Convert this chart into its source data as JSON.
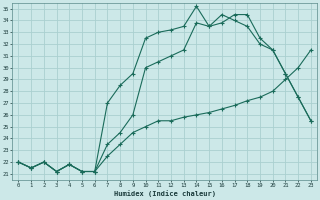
{
  "xlabel": "Humidex (Indice chaleur)",
  "bg_color": "#cce8e8",
  "line_color": "#1a6b5a",
  "grid_color": "#aad0d0",
  "xlim": [
    -0.5,
    23.5
  ],
  "ylim": [
    20.5,
    35.5
  ],
  "xticks": [
    0,
    1,
    2,
    3,
    4,
    5,
    6,
    7,
    8,
    9,
    10,
    11,
    12,
    13,
    14,
    15,
    16,
    17,
    18,
    19,
    20,
    21,
    22,
    23
  ],
  "yticks": [
    21,
    22,
    23,
    24,
    25,
    26,
    27,
    28,
    29,
    30,
    31,
    32,
    33,
    34,
    35
  ],
  "line1_x": [
    0,
    1,
    2,
    3,
    4,
    5,
    6,
    7,
    8,
    9,
    10,
    11,
    12,
    13,
    14,
    15,
    16,
    17,
    18,
    19,
    20,
    21,
    22,
    23
  ],
  "line1_y": [
    22.0,
    21.5,
    22.0,
    21.2,
    21.8,
    21.2,
    21.2,
    22.5,
    23.5,
    24.5,
    25.0,
    25.5,
    25.5,
    25.8,
    26.0,
    26.2,
    26.5,
    26.8,
    27.2,
    27.5,
    28.0,
    29.0,
    30.0,
    31.5
  ],
  "line2_x": [
    0,
    1,
    2,
    3,
    4,
    5,
    6,
    7,
    8,
    9,
    10,
    11,
    12,
    13,
    14,
    15,
    16,
    17,
    18,
    19,
    20,
    21,
    22,
    23
  ],
  "line2_y": [
    22.0,
    21.5,
    22.0,
    21.2,
    21.8,
    21.2,
    21.2,
    27.0,
    28.5,
    29.5,
    32.5,
    33.0,
    33.2,
    33.5,
    35.2,
    33.5,
    33.8,
    34.5,
    34.5,
    32.5,
    31.5,
    29.5,
    27.5,
    25.5
  ],
  "line3_x": [
    0,
    1,
    2,
    3,
    4,
    5,
    6,
    7,
    8,
    9,
    10,
    11,
    12,
    13,
    14,
    15,
    16,
    17,
    18,
    19,
    20,
    21,
    22,
    23
  ],
  "line3_y": [
    22.0,
    21.5,
    22.0,
    21.2,
    21.8,
    21.2,
    21.2,
    23.5,
    24.5,
    26.0,
    30.0,
    30.5,
    31.0,
    31.5,
    33.8,
    33.5,
    34.5,
    34.0,
    33.5,
    32.0,
    31.5,
    29.5,
    27.5,
    25.5
  ]
}
